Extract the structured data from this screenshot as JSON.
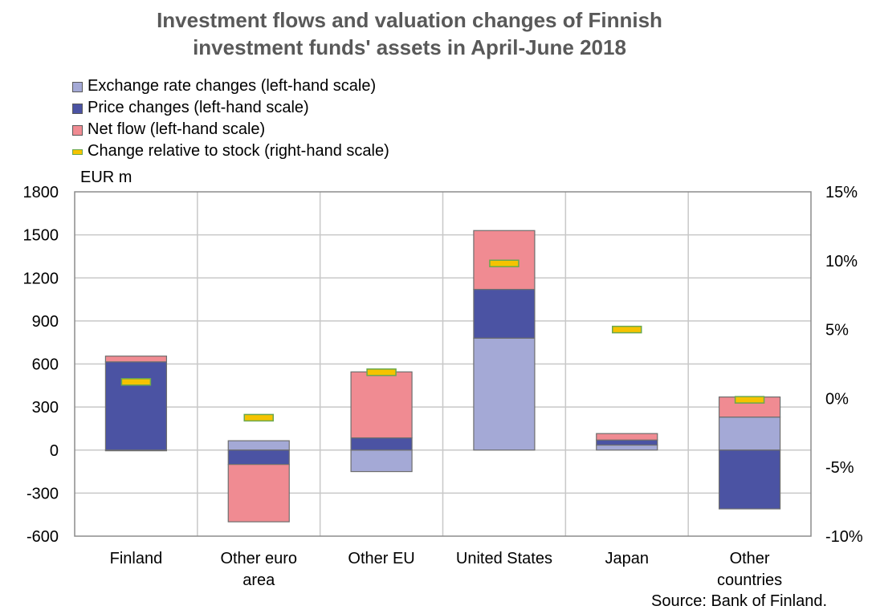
{
  "title_line1": "Investment flows and valuation changes of Finnish",
  "title_line2": "investment funds' assets in April-June 2018",
  "unit_label": "EUR m",
  "source": "Source: Bank of Finland.",
  "colors": {
    "exchange": "#a4a9d6",
    "price": "#4b53a3",
    "netflow": "#f08b92",
    "marker": "#f5c300",
    "marker_border": "#6aa84f",
    "grid": "#c8c8c8"
  },
  "chart_data": {
    "type": "bar",
    "stacked": true,
    "title": "Investment flows and valuation changes of Finnish investment funds' assets in April-June 2018",
    "categories": [
      [
        "Finland"
      ],
      [
        "Other euro",
        "area"
      ],
      [
        "Other EU"
      ],
      [
        "United States"
      ],
      [
        "Japan"
      ],
      [
        "Other",
        "countries"
      ]
    ],
    "ylabel": "EUR m",
    "ylim": [
      -600,
      1800
    ],
    "yticks": [
      -600,
      -300,
      0,
      300,
      600,
      900,
      1200,
      1500,
      1800
    ],
    "y2lim": [
      -10,
      15
    ],
    "y2ticks": [
      -10,
      -5,
      0,
      5,
      10,
      15
    ],
    "y2tick_labels": [
      "-10%",
      "-5%",
      "0%",
      "5%",
      "10%",
      "15%"
    ],
    "legend_position": "top-left",
    "grid": true,
    "series": [
      {
        "name": "Exchange rate changes (left-hand scale)",
        "axis": "left",
        "values": [
          -5,
          65,
          -150,
          780,
          35,
          230
        ]
      },
      {
        "name": "Price changes (left-hand scale)",
        "axis": "left",
        "values": [
          615,
          -100,
          85,
          340,
          35,
          -410
        ]
      },
      {
        "name": "Net flow (left-hand scale)",
        "axis": "left",
        "values": [
          40,
          -400,
          460,
          410,
          45,
          140
        ]
      },
      {
        "name": "Change relative to stock (right-hand scale)",
        "axis": "right",
        "type": "marker",
        "values": [
          1.2,
          -1.4,
          1.9,
          9.8,
          5.0,
          -0.1
        ]
      }
    ]
  }
}
